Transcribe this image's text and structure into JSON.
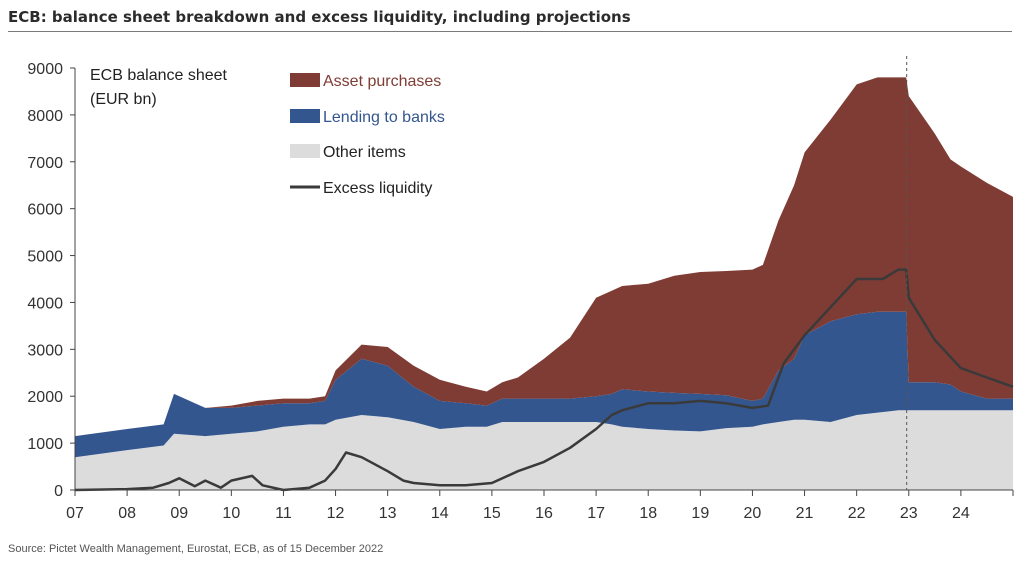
{
  "header": {
    "title": "ECB: balance sheet breakdown and excess liquidity, including projections"
  },
  "footer": {
    "source": "Source: Pictet Wealth Management, Eurostat, ECB, as of 15 December 2022"
  },
  "chart_data": {
    "type": "area",
    "title": "ECB: balance sheet breakdown and excess liquidity, including projections",
    "annotation": "ECB balance sheet (EUR bn)",
    "annotation_lines": [
      "ECB balance sheet",
      "(EUR bn)"
    ],
    "xlabel": "",
    "ylabel": "EUR bn",
    "xlim": [
      2007,
      2025
    ],
    "ylim": [
      0,
      9000
    ],
    "x_ticks": [
      2007,
      2008,
      2009,
      2010,
      2011,
      2012,
      2013,
      2014,
      2015,
      2016,
      2017,
      2018,
      2019,
      2020,
      2021,
      2022,
      2023,
      2024
    ],
    "x_tick_labels": [
      "07",
      "08",
      "09",
      "10",
      "11",
      "12",
      "13",
      "14",
      "15",
      "16",
      "17",
      "18",
      "19",
      "20",
      "21",
      "22",
      "23",
      "24"
    ],
    "y_ticks": [
      0,
      1000,
      2000,
      3000,
      4000,
      5000,
      6000,
      7000,
      8000,
      9000
    ],
    "y_tick_labels": [
      "0",
      "1000",
      "2000",
      "3000",
      "4000",
      "5000",
      "6000",
      "7000",
      "8000",
      "9000"
    ],
    "projection_start": 2022.96,
    "legend_position": "top-center",
    "x": [
      2007.0,
      2008.0,
      2008.7,
      2008.9,
      2009.5,
      2010.0,
      2010.5,
      2011.0,
      2011.5,
      2011.8,
      2012.0,
      2012.5,
      2013.0,
      2013.5,
      2014.0,
      2014.5,
      2014.9,
      2015.2,
      2015.5,
      2016.0,
      2016.5,
      2017.0,
      2017.3,
      2017.5,
      2018.0,
      2018.5,
      2019.0,
      2019.5,
      2020.0,
      2020.2,
      2020.5,
      2020.8,
      2021.0,
      2021.5,
      2022.0,
      2022.4,
      2022.8,
      2022.95,
      2023.0,
      2023.5,
      2023.8,
      2024.0,
      2024.5,
      2025.0
    ],
    "series": [
      {
        "name": "Other items",
        "color": "#dcdcdc",
        "values": [
          700,
          850,
          950,
          1200,
          1150,
          1200,
          1250,
          1350,
          1400,
          1400,
          1500,
          1600,
          1550,
          1450,
          1300,
          1350,
          1350,
          1450,
          1450,
          1450,
          1450,
          1450,
          1400,
          1350,
          1300,
          1270,
          1250,
          1320,
          1350,
          1400,
          1450,
          1500,
          1500,
          1450,
          1600,
          1650,
          1700,
          1700,
          1700,
          1700,
          1700,
          1700,
          1700,
          1700
        ]
      },
      {
        "name": "Lending to banks",
        "color": "#34568f",
        "values": [
          450,
          450,
          450,
          850,
          600,
          550,
          550,
          500,
          450,
          500,
          850,
          1200,
          1100,
          750,
          600,
          500,
          450,
          500,
          500,
          500,
          500,
          550,
          650,
          800,
          800,
          800,
          800,
          700,
          550,
          550,
          1100,
          1300,
          1800,
          2150,
          2150,
          2150,
          2100,
          2100,
          600,
          600,
          550,
          400,
          250,
          250
        ]
      },
      {
        "name": "Asset purchases",
        "color": "#7f3c34",
        "values": [
          0,
          0,
          0,
          0,
          0,
          50,
          100,
          100,
          100,
          100,
          200,
          300,
          400,
          450,
          450,
          350,
          300,
          350,
          450,
          850,
          1300,
          2100,
          2200,
          2200,
          2300,
          2500,
          2600,
          2650,
          2800,
          2850,
          3200,
          3700,
          3900,
          4300,
          4900,
          5000,
          5000,
          5000,
          6100,
          5300,
          4800,
          4800,
          4600,
          4300
        ]
      }
    ],
    "line_series": {
      "name": "Excess liquidity",
      "color": "#3a3a3a",
      "x": [
        2007.0,
        2008.0,
        2008.5,
        2008.8,
        2009.0,
        2009.3,
        2009.5,
        2009.8,
        2010.0,
        2010.4,
        2010.6,
        2011.0,
        2011.5,
        2011.8,
        2012.0,
        2012.2,
        2012.5,
        2013.0,
        2013.3,
        2013.5,
        2014.0,
        2014.5,
        2015.0,
        2015.5,
        2016.0,
        2016.5,
        2017.0,
        2017.3,
        2017.5,
        2018.0,
        2018.5,
        2019.0,
        2019.5,
        2020.0,
        2020.3,
        2020.6,
        2021.0,
        2021.5,
        2022.0,
        2022.5,
        2022.8,
        2022.95,
        2023.0,
        2023.5,
        2024.0,
        2024.5,
        2025.0
      ],
      "values": [
        0,
        20,
        50,
        150,
        250,
        80,
        200,
        50,
        200,
        300,
        100,
        0,
        50,
        200,
        450,
        800,
        700,
        400,
        200,
        150,
        100,
        100,
        150,
        400,
        600,
        900,
        1300,
        1600,
        1700,
        1850,
        1850,
        1900,
        1850,
        1750,
        1800,
        2700,
        3300,
        3900,
        4500,
        4500,
        4700,
        4700,
        4100,
        3200,
        2600,
        2400,
        2200
      ]
    }
  }
}
